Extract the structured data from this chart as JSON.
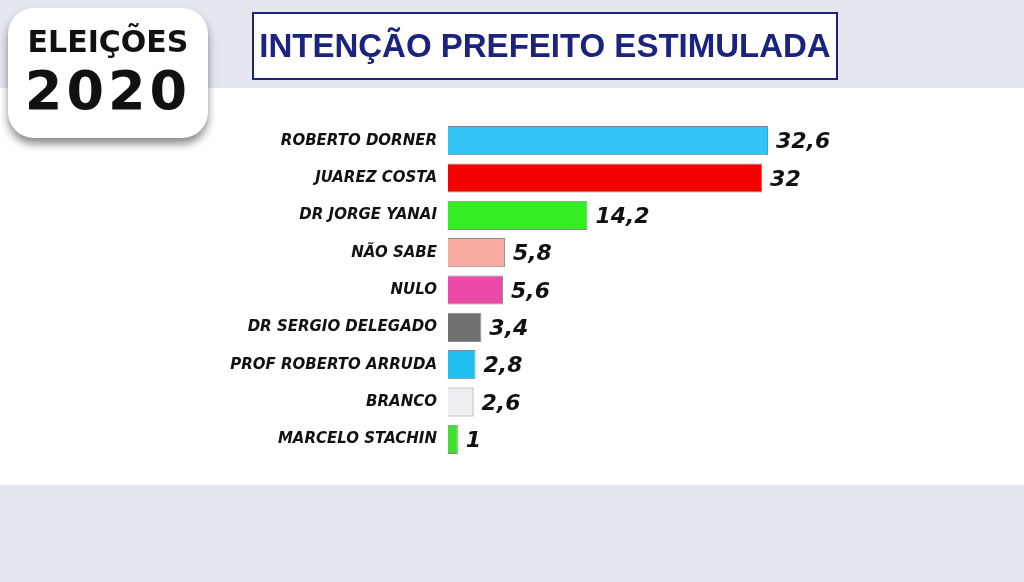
{
  "chart_data": {
    "type": "bar",
    "orientation": "horizontal",
    "title": "INTENÇÃO PREFEITO ESTIMULADA",
    "annotations": [
      "ELEIÇÕES 2020"
    ],
    "categories": [
      "ROBERTO DORNER",
      "JUAREZ COSTA",
      "DR JORGE YANAI",
      "NÃO SABE",
      "NULO",
      "DR SERGIO DELEGADO",
      "PROF ROBERTO ARRUDA",
      "BRANCO",
      "MARCELO STACHIN"
    ],
    "values": [
      32.6,
      32,
      14.2,
      5.8,
      5.6,
      3.4,
      2.8,
      2.6,
      1
    ],
    "value_labels": [
      "32,6",
      "32",
      "14,2",
      "5,8",
      "5,6",
      "3,4",
      "2,8",
      "2,6",
      "1"
    ],
    "colors": [
      "#33c3f5",
      "#f50000",
      "#33ee22",
      "#f7aaa0",
      "#ec4aa8",
      "#707070",
      "#22c0f0",
      "#eeeef2",
      "#44dd33"
    ],
    "tick_labels": "y"
  }
}
